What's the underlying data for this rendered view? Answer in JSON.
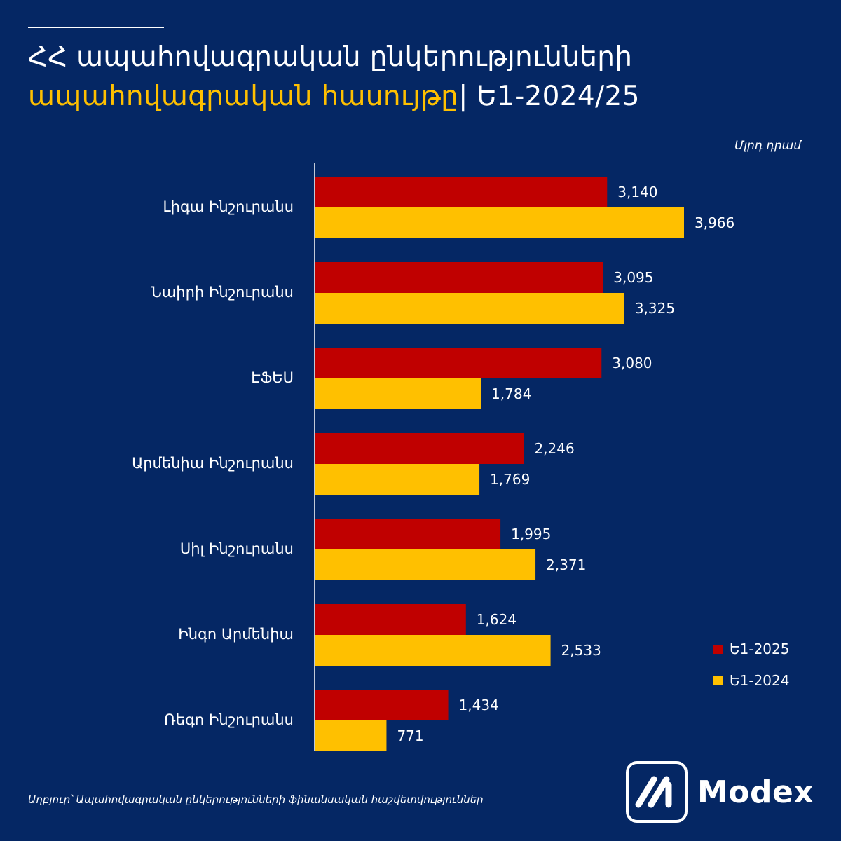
{
  "header": {
    "title_line1": "ՀՀ ապահովագրական ընկերությունների",
    "title_highlight": "ապահովագրական հասույթը",
    "title_suffix": "| Ե1-2024/25"
  },
  "unit_label": "Մլրդ դրամ",
  "colors": {
    "background": "#052764",
    "series_2025": "#c00000",
    "series_2024": "#ffc000",
    "highlight": "#ffc000",
    "text": "#ffffff"
  },
  "chart_data": {
    "type": "bar",
    "orientation": "horizontal",
    "categories": [
      "Լիգա Ինշուրանս",
      "Նաիրի Ինշուրանս",
      "ԷՖԵՍ",
      "Արմենիա Ինշուրանս",
      "Սիլ Ինշուրանս",
      "Ինգո Արմենիա",
      "Ռեգո Ինշուրանս"
    ],
    "series": [
      {
        "name": "Ե1-2025",
        "color": "#c00000",
        "values": [
          3140,
          3095,
          3080,
          2246,
          1995,
          1624,
          1434
        ],
        "labels": [
          "3,140",
          "3,095",
          "3,080",
          "2,246",
          "1,995",
          "1,624",
          "1,434"
        ]
      },
      {
        "name": "Ե1-2024",
        "color": "#ffc000",
        "values": [
          3966,
          3325,
          1784,
          1769,
          2371,
          2533,
          771
        ],
        "labels": [
          "3,966",
          "3,325",
          "1,784",
          "1,769",
          "2,371",
          "2,533",
          "771"
        ]
      }
    ],
    "xlim": [
      0,
      4000
    ],
    "grid": false,
    "legend_position": "bottom-right"
  },
  "footer": {
    "source": "Աղբյուր՝ Ապահովագրական ընկերությունների ֆինանսական հաշվետվություններ",
    "logo_text": "Modex"
  }
}
